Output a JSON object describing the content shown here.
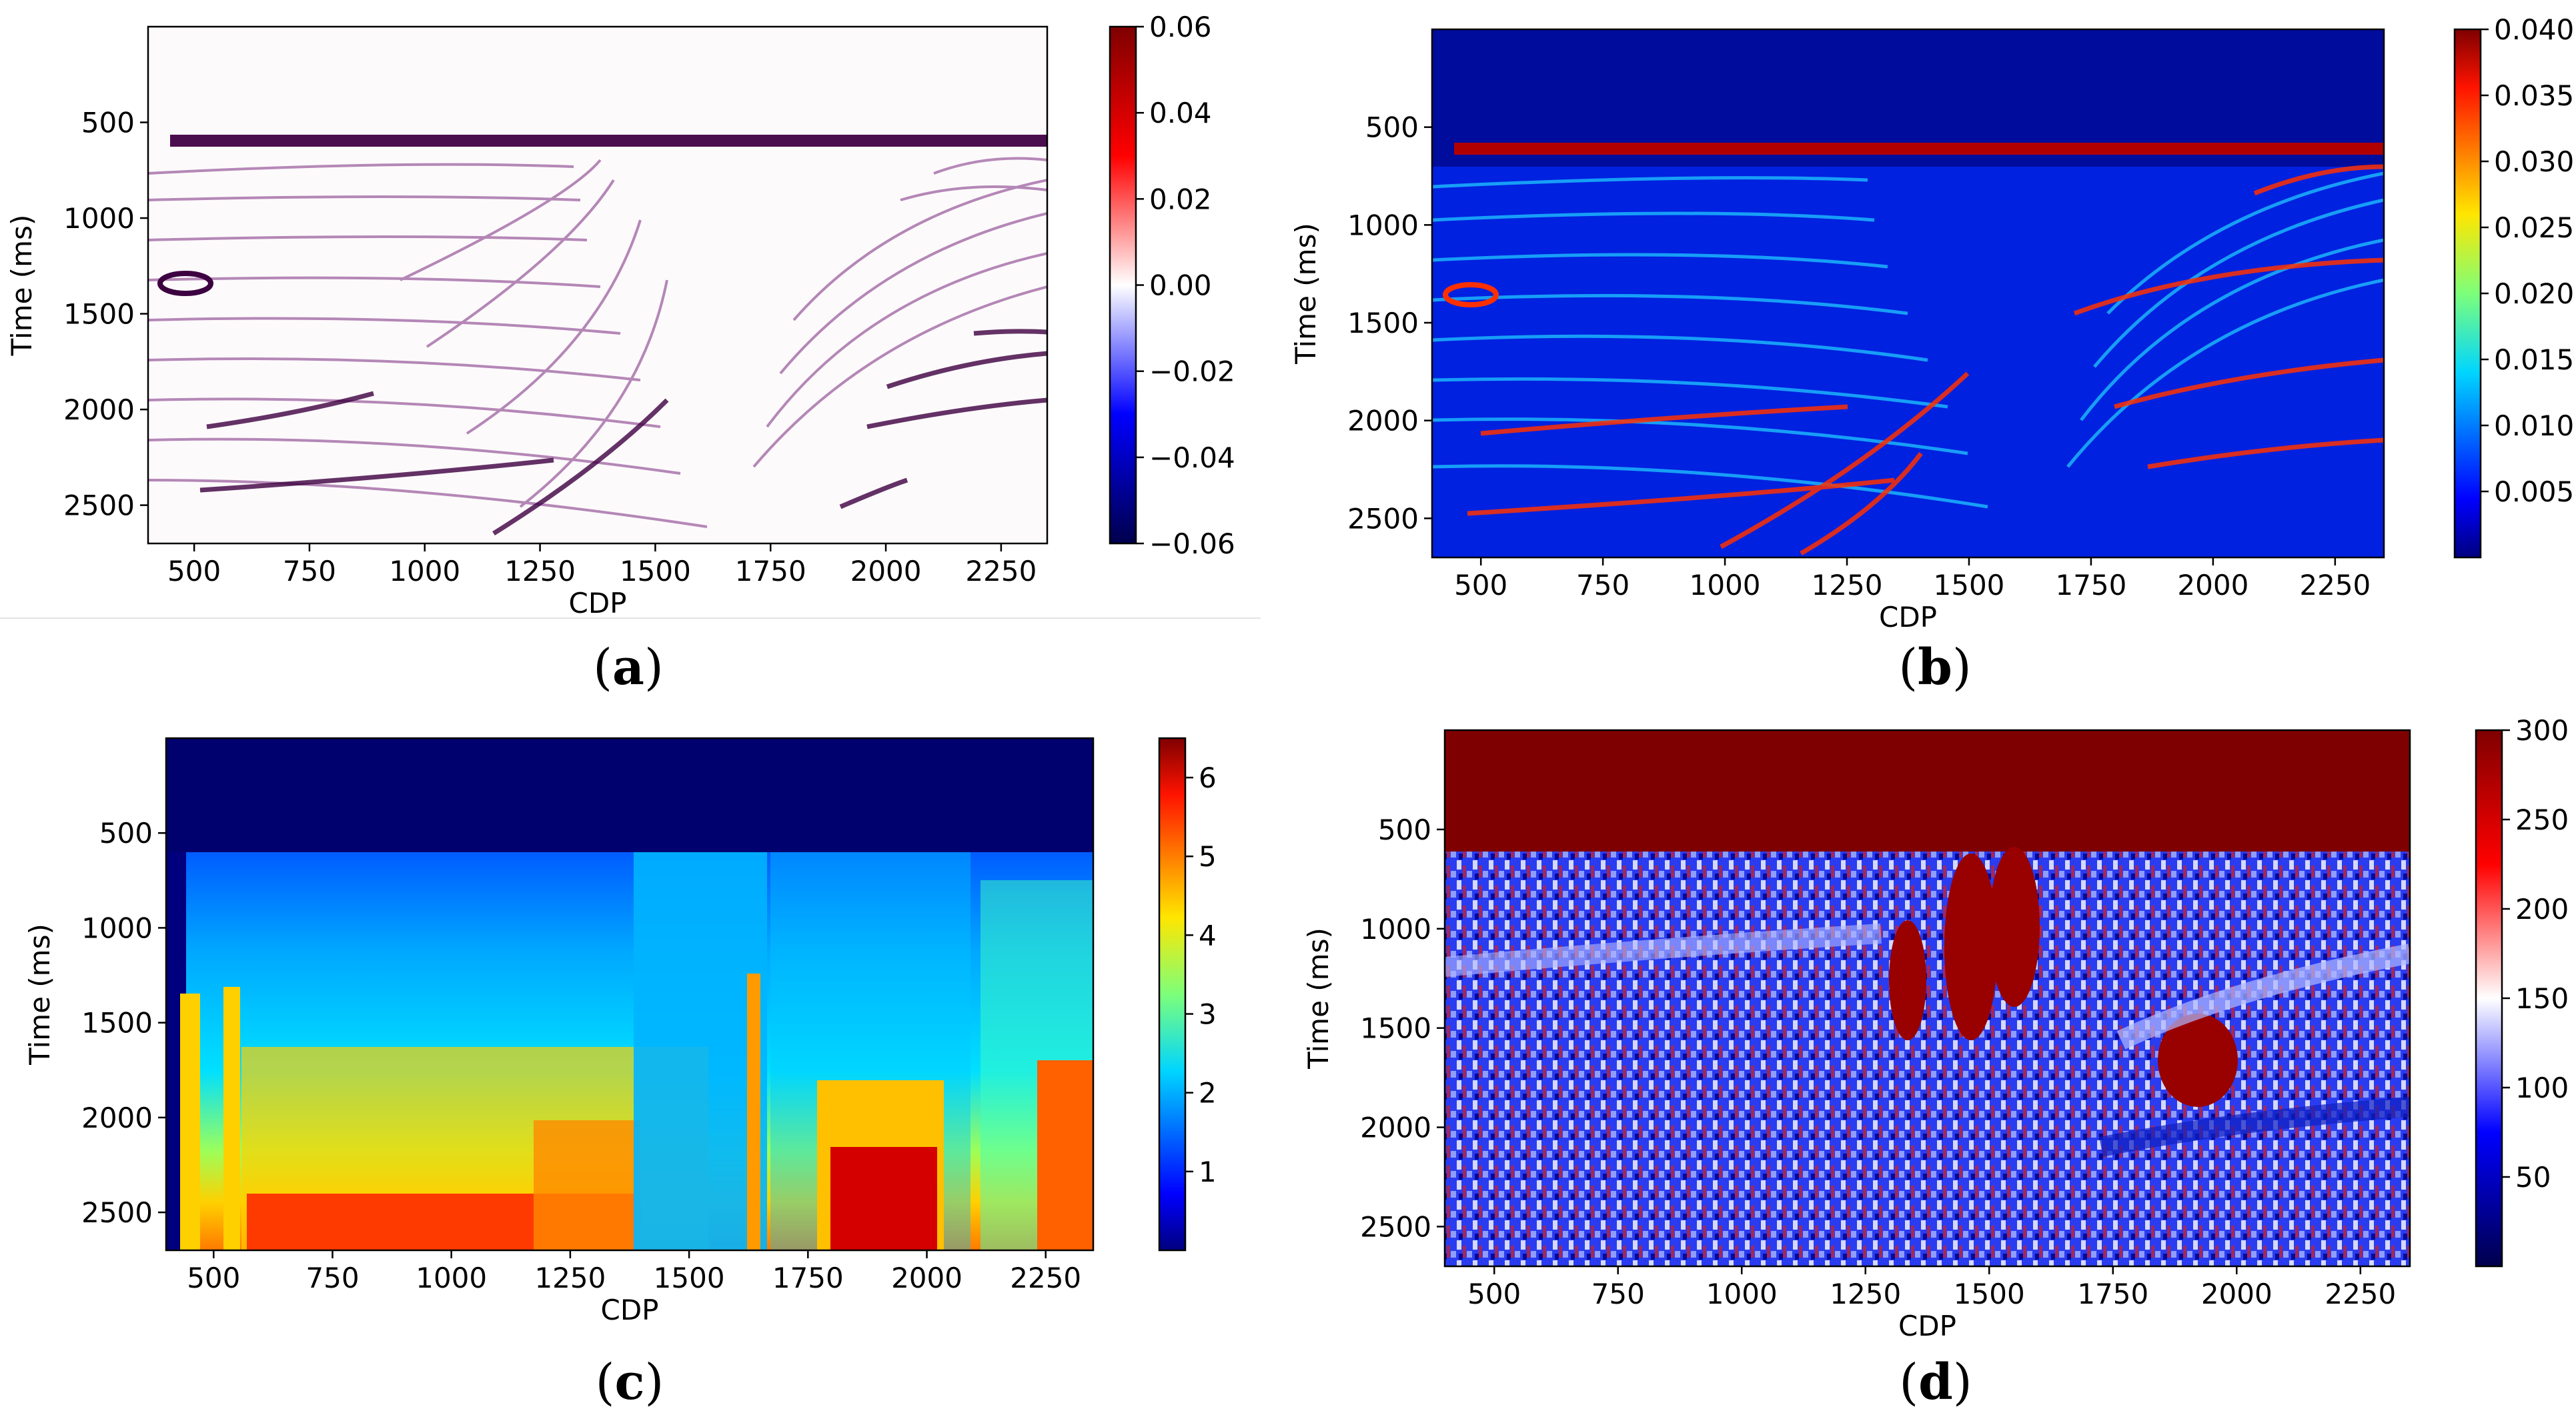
{
  "figure_labels": [
    {
      "paren_open": "(",
      "letter": "a",
      "paren_close": ")"
    },
    {
      "paren_open": "(",
      "letter": "b",
      "paren_close": ")"
    },
    {
      "paren_open": "(",
      "letter": "c",
      "paren_close": ")"
    },
    {
      "paren_open": "(",
      "letter": "d",
      "paren_close": ")"
    }
  ],
  "chart_data": [
    {
      "type": "heatmap",
      "colormap": "seismic",
      "xlabel": "CDP",
      "ylabel": "Time (ms)",
      "xlim": [
        400,
        2350
      ],
      "ylim": [
        2700,
        0
      ],
      "x_ticks": [
        500,
        750,
        1000,
        1250,
        1500,
        1750,
        2000,
        2250
      ],
      "y_ticks": [
        500,
        1000,
        1500,
        2000,
        2500
      ],
      "colorbar": {
        "min": -0.06,
        "max": 0.06,
        "ticks": [
          0.06,
          0.04,
          0.02,
          0.0,
          -0.02,
          -0.04,
          -0.06
        ],
        "tick_labels": [
          "0.06",
          "0.04",
          "0.02",
          "0.00",
          "−0.02",
          "−0.04",
          "−0.06"
        ]
      }
    },
    {
      "type": "heatmap",
      "colormap": "jet",
      "xlabel": "CDP",
      "ylabel": "Time (ms)",
      "xlim": [
        400,
        2350
      ],
      "ylim": [
        2700,
        0
      ],
      "x_ticks": [
        500,
        750,
        1000,
        1250,
        1500,
        1750,
        2000,
        2250
      ],
      "y_ticks": [
        500,
        1000,
        1500,
        2000,
        2500
      ],
      "colorbar": {
        "min": 0.0,
        "max": 0.04,
        "ticks": [
          0.04,
          0.035,
          0.03,
          0.025,
          0.02,
          0.015,
          0.01,
          0.005
        ],
        "tick_labels": [
          "0.040",
          "0.035",
          "0.030",
          "0.025",
          "0.020",
          "0.015",
          "0.010",
          "0.005"
        ]
      }
    },
    {
      "type": "heatmap",
      "colormap": "jet",
      "xlabel": "CDP",
      "ylabel": "Time (ms)",
      "xlim": [
        400,
        2350
      ],
      "ylim": [
        2700,
        0
      ],
      "x_ticks": [
        500,
        750,
        1000,
        1250,
        1500,
        1750,
        2000,
        2250
      ],
      "y_ticks": [
        500,
        1000,
        1500,
        2000,
        2500
      ],
      "colorbar": {
        "min": 0,
        "max": 6.5,
        "ticks": [
          6,
          5,
          4,
          3,
          2,
          1
        ],
        "tick_labels": [
          "6",
          "5",
          "4",
          "3",
          "2",
          "1"
        ]
      }
    },
    {
      "type": "heatmap",
      "colormap": "seismic",
      "xlabel": "CDP",
      "ylabel": "Time (ms)",
      "xlim": [
        400,
        2350
      ],
      "ylim": [
        2700,
        0
      ],
      "x_ticks": [
        500,
        750,
        1000,
        1250,
        1500,
        1750,
        2000,
        2250
      ],
      "y_ticks": [
        500,
        1000,
        1500,
        2000,
        2500
      ],
      "colorbar": {
        "min": 0,
        "max": 300,
        "ticks": [
          300,
          250,
          200,
          150,
          100,
          50
        ],
        "tick_labels": [
          "300",
          "250",
          "200",
          "150",
          "100",
          "50"
        ]
      }
    }
  ]
}
